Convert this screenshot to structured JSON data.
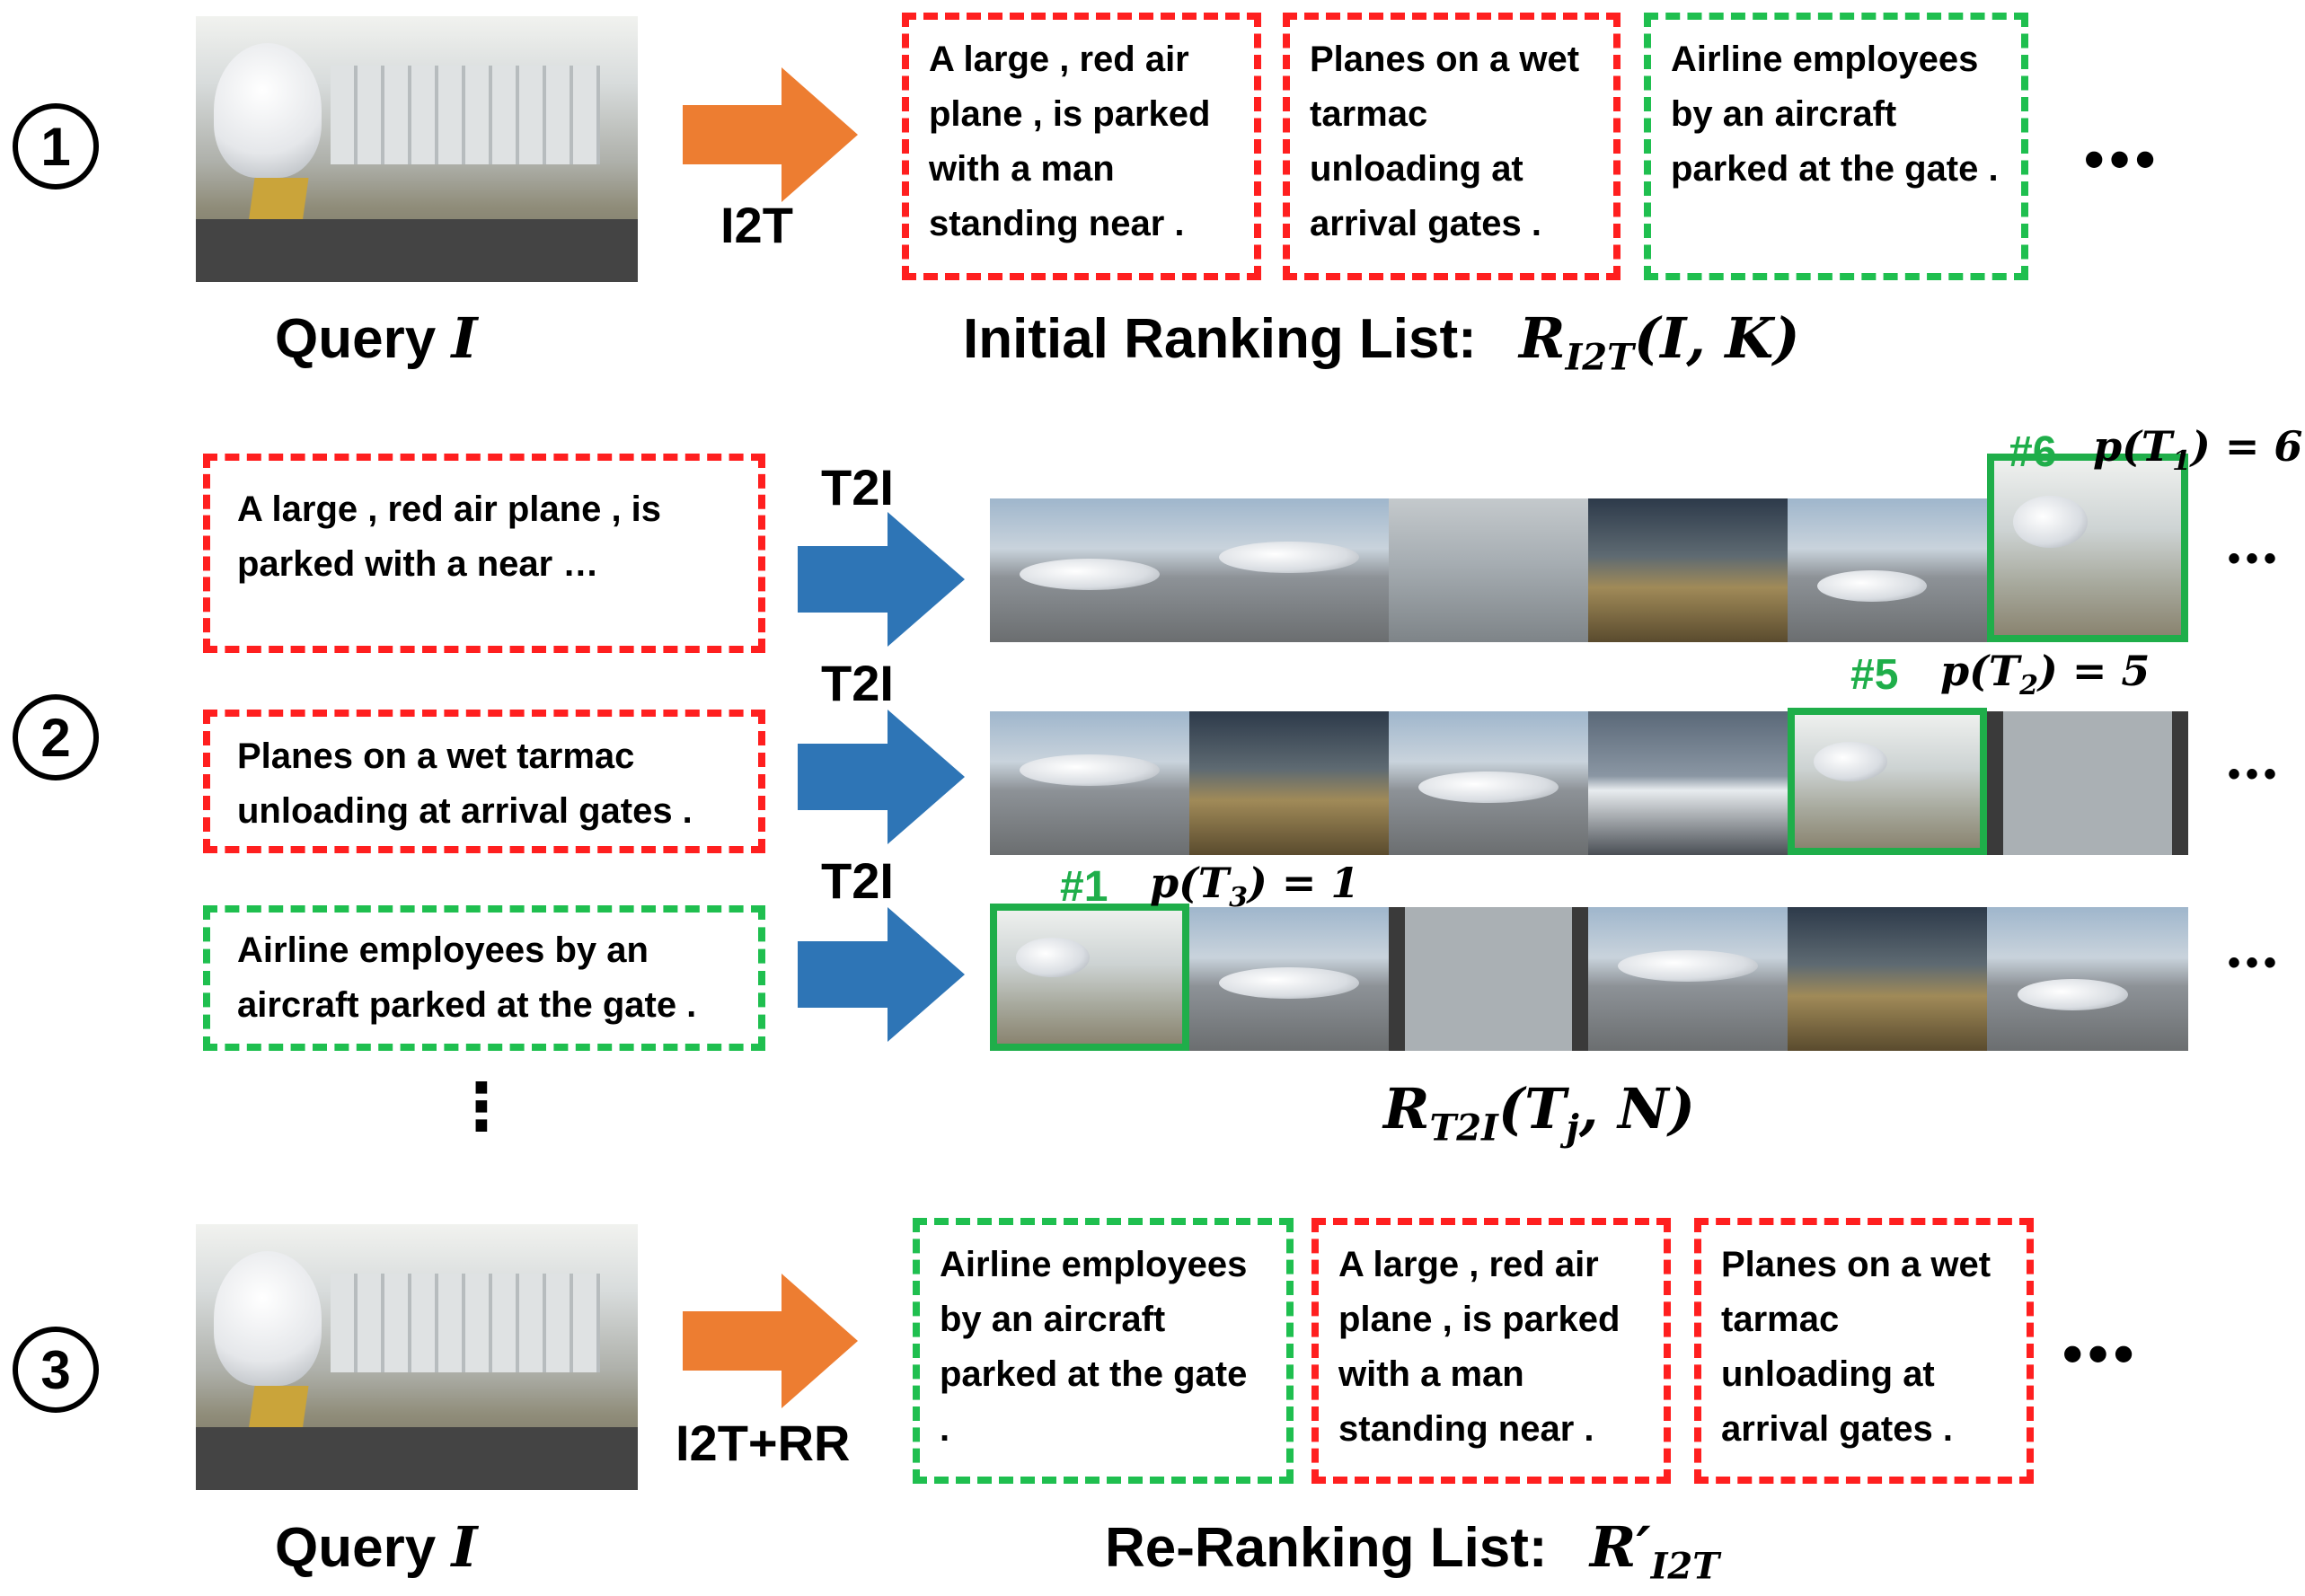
{
  "step1": {
    "number": "1",
    "query_label": "Query",
    "query_var": "I",
    "arrow_label": "I2T",
    "boxes": [
      {
        "text": "A large , red air plane , is parked with a man standing near .",
        "color": "red"
      },
      {
        "text": "Planes on a wet tarmac unloading at arrival gates .",
        "color": "red"
      },
      {
        "text": "Airline employees by an aircraft parked at the gate .",
        "color": "green"
      }
    ],
    "ellipsis": "•••",
    "caption_text": "Initial Ranking List:",
    "caption_math": "R",
    "caption_sub": "I2T",
    "caption_args": "(I, K)"
  },
  "step2": {
    "number": "2",
    "rows": [
      {
        "text": "A large , red air plane , is parked with a near …",
        "color": "red",
        "arrow_label": "T2I",
        "rank": "#6",
        "score_p": "p(T",
        "score_sub": "1",
        "score_eq": ") = 6"
      },
      {
        "text": "Planes on a wet tarmac unloading at arrival gates .",
        "color": "red",
        "arrow_label": "T2I",
        "rank": "#5",
        "score_p": "p(T",
        "score_sub": "2",
        "score_eq": ") = 5"
      },
      {
        "text": "Airline employees by an aircraft parked at the gate .",
        "color": "green",
        "arrow_label": "T2I",
        "rank": "#1",
        "score_p": "p(T",
        "score_sub": "3",
        "score_eq": ") = 1"
      }
    ],
    "vdots": "⋮",
    "row_ellipsis": "•••",
    "caption_math": "R",
    "caption_sub": "T2I",
    "caption_args": "(T",
    "caption_args_sub": "j",
    "caption_args_tail": ", N)"
  },
  "step3": {
    "number": "3",
    "query_label": "Query",
    "query_var": "I",
    "arrow_label": "I2T+RR",
    "boxes": [
      {
        "text": "Airline employees by an aircraft parked at the gate .",
        "color": "green"
      },
      {
        "text": "A large , red air plane , is parked with a man standing near .",
        "color": "red"
      },
      {
        "text": "Planes on a wet tarmac unloading at arrival gates .",
        "color": "red"
      }
    ],
    "ellipsis": "•••",
    "caption_text": "Re-Ranking List:",
    "caption_math": "R′",
    "caption_sub": "I2T"
  },
  "colors": {
    "orange": "#ed7d31",
    "blue": "#2e75b6",
    "red": "#ff1f1f",
    "green": "#1fae4a"
  }
}
